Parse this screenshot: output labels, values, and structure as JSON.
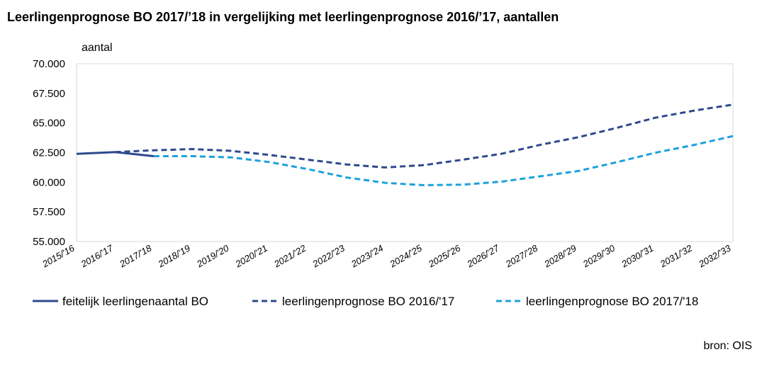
{
  "chart_data": {
    "type": "line",
    "title": "Leerlingenprognose BO 2017/’18 in vergelijking met leerlingenprognose 2016/’17, aantallen",
    "ylabel": "aantal",
    "xlabel": "",
    "ylim": [
      55000,
      70000
    ],
    "yticks": [
      55000,
      57500,
      60000,
      62500,
      65000,
      67500,
      70000
    ],
    "ytick_labels": [
      "55.000",
      "57.500",
      "60.000",
      "62.500",
      "65.000",
      "67.500",
      "70.000"
    ],
    "categories": [
      "2015/'16",
      "2016/'17",
      "2017/'18",
      "2018/'19",
      "2019/'20",
      "2020/'21",
      "2021/'22",
      "2022/'23",
      "2023/'24",
      "2024/'25",
      "2025/'26",
      "2026/'27",
      "2027/'28",
      "2028/'29",
      "2029/'30",
      "2030/'31",
      "2031/'32",
      "2032/'33"
    ],
    "series": [
      {
        "name": "feitelijk leerlingenaantal BO",
        "style": "solid",
        "color": "#2e4a8e",
        "values": [
          62400,
          62550,
          62200,
          null,
          null,
          null,
          null,
          null,
          null,
          null,
          null,
          null,
          null,
          null,
          null,
          null,
          null,
          null
        ]
      },
      {
        "name": "leerlingenprognose BO 2016/'17",
        "style": "dashed",
        "color": "#2e4a8e",
        "values": [
          null,
          62550,
          62700,
          62800,
          62650,
          62300,
          61900,
          61500,
          61250,
          61450,
          61900,
          62400,
          63150,
          63800,
          64600,
          65450,
          66050,
          66550
        ]
      },
      {
        "name": "leerlingenprognose BO 2017/'18",
        "style": "dashed",
        "color": "#1ea1dc",
        "values": [
          null,
          null,
          62200,
          62200,
          62100,
          61700,
          61100,
          60400,
          59950,
          59750,
          59800,
          60050,
          60500,
          60950,
          61700,
          62500,
          63150,
          63900
        ]
      }
    ],
    "legend": "bottom"
  },
  "source": "bron: OIS"
}
